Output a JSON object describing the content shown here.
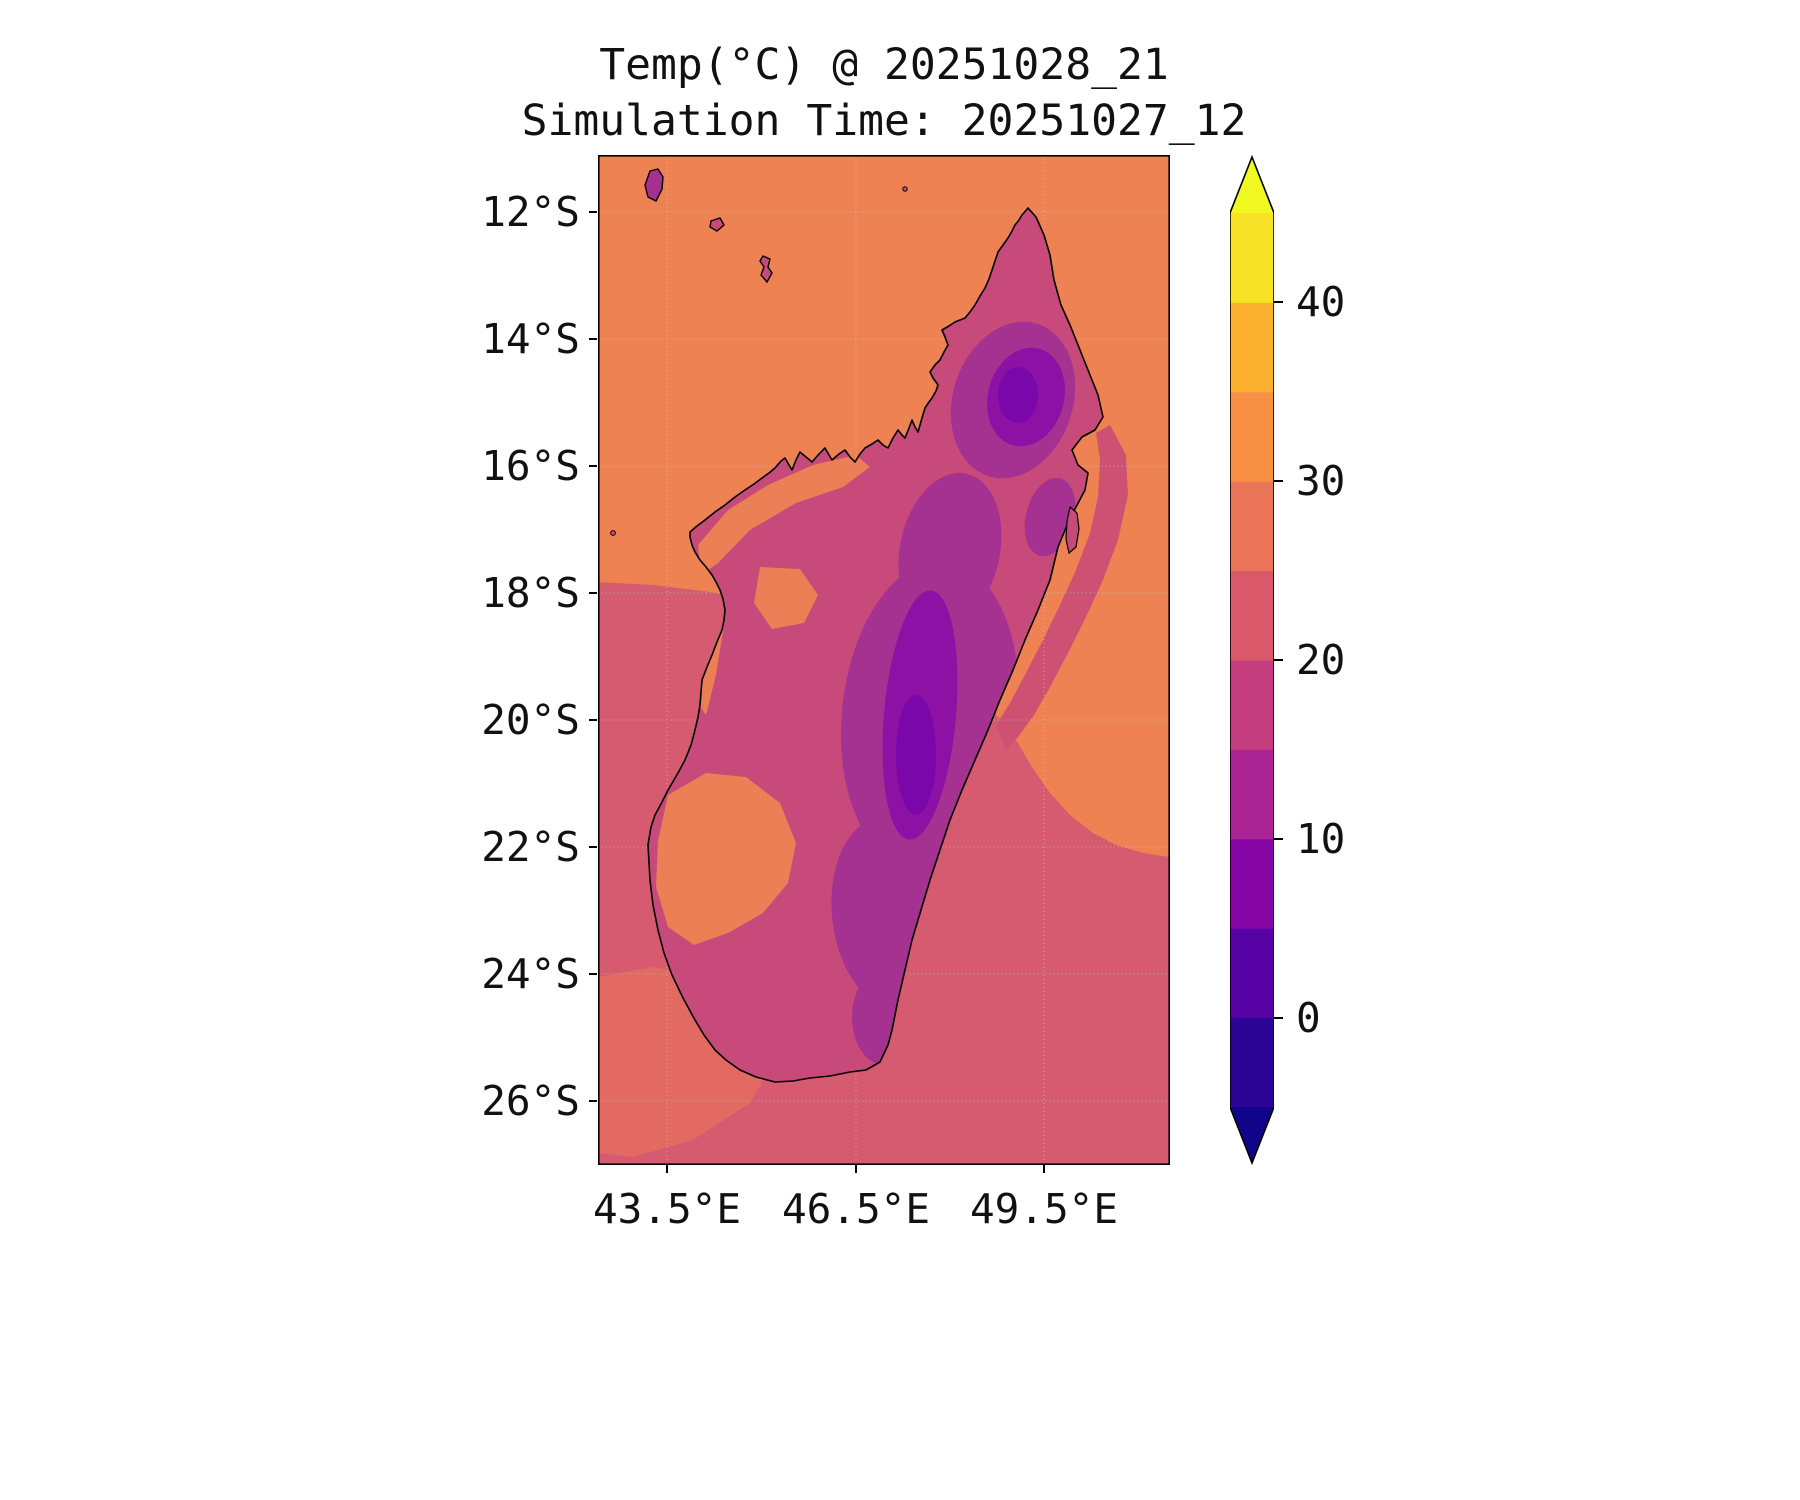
{
  "title": {
    "line1": "Temp(°C) @ 20251028_21",
    "line2": "Simulation Time: 20251027_12"
  },
  "axes": {
    "y_tick_labels": [
      "12°S",
      "14°S",
      "16°S",
      "18°S",
      "20°S",
      "22°S",
      "24°S",
      "26°S"
    ],
    "x_tick_labels": [
      "43.5°E",
      "46.5°E",
      "49.5°E"
    ]
  },
  "colorbar": {
    "tick_labels": [
      "40",
      "30",
      "20",
      "10",
      "0"
    ],
    "tick_values": [
      40,
      30,
      20,
      10,
      0
    ],
    "level_min": -5,
    "level_max": 45,
    "bands_bottom_to_top": [
      "#2d0594",
      "#5601a4",
      "#8606a6",
      "#ab2494",
      "#c43e7f",
      "#d9586a",
      "#ea7457",
      "#f79044",
      "#fdb130",
      "#f7e225"
    ],
    "extend_under": "#10058a",
    "extend_over": "#f0f921"
  },
  "palette": {
    "background": "#ffffff",
    "text": "#111111",
    "ocean_north": "#ee8252",
    "ocean_mid": "#e26a62",
    "ocean_south": "#d75b70",
    "east_coast_band": "#ce5173",
    "land_base": "#c74a7a",
    "land_warm": "#eb7f55",
    "highland": "#a53190",
    "highland_dark": "#8c11a4",
    "highland_core": "#7a07a9",
    "coastline": "#000000",
    "gridline": "#d8d8d8"
  },
  "chart_data": {
    "type": "heatmap",
    "title": "Temp(°C) @ 20251028_21",
    "subtitle": "Simulation Time: 20251027_12",
    "variable": "Temperature",
    "units": "°C",
    "valid_time": "20251028_21",
    "simulation_time": "20251027_12",
    "region": "Madagascar and surrounding Indian Ocean / Mozambique Channel",
    "x_axis": {
      "tick_labels": [
        "43.5°E",
        "46.5°E",
        "49.5°E"
      ],
      "approx_range_deg_e": [
        42.4,
        51.6
      ],
      "grid": true
    },
    "y_axis": {
      "tick_labels": [
        "12°S",
        "14°S",
        "16°S",
        "18°S",
        "20°S",
        "22°S",
        "24°S",
        "26°S"
      ],
      "approx_range_deg_s": [
        11.1,
        27.0
      ],
      "grid": true
    },
    "colorbar": {
      "tick_values": [
        0,
        10,
        20,
        30,
        40
      ],
      "level_min": -5,
      "level_max": 45,
      "level_step": 5,
      "colormap": "plasma",
      "extend": "both",
      "position": "right"
    },
    "estimated_values_degC": {
      "ocean_north_of_18S": 28,
      "ocean_south_of_18S": 23,
      "mozambique_channel_southwest": 26,
      "east_coast_offshore_band": 21,
      "west_coast_lowlands_warm_patches": 27,
      "land_coastal_base": 20,
      "central_highlands_band": 13,
      "highland_dark_zones": 9,
      "highland_coldest_cores": 6,
      "northern_massif_cold_core": 8,
      "comoros_islands": 20
    },
    "notes": "Filled contour temperature map over Madagascar; cold purple spine along central/eastern highlands, warm orange ocean to the north, cooler pink ocean to the south."
  }
}
